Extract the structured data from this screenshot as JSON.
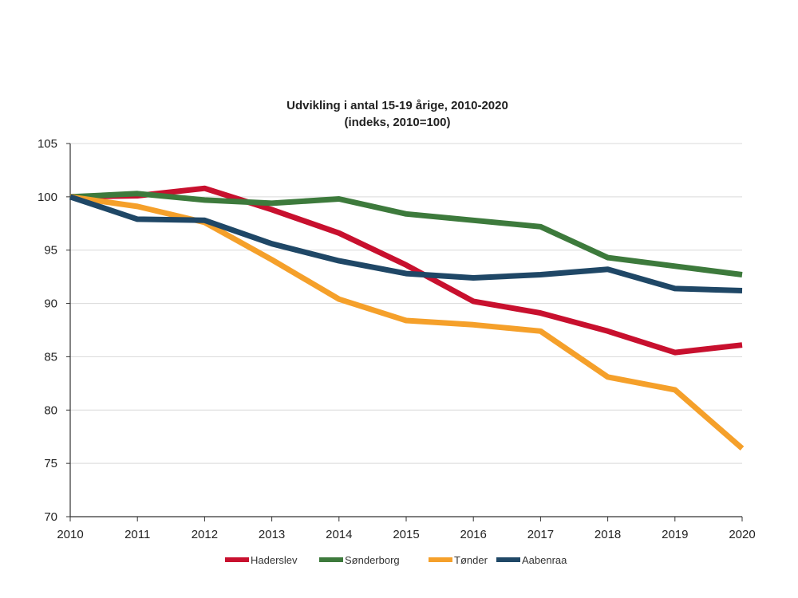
{
  "chart_data": {
    "type": "line",
    "title": "Udvikling i antal 15-19 årige, 2010-2020",
    "subtitle": "(indeks, 2010=100)",
    "xlabel": "",
    "ylabel": "",
    "x": [
      2010,
      2011,
      2012,
      2013,
      2014,
      2015,
      2016,
      2017,
      2018,
      2019,
      2020
    ],
    "ylim": [
      70,
      105
    ],
    "yticks": [
      70,
      75,
      80,
      85,
      90,
      95,
      100,
      105
    ],
    "grid": true,
    "legend_position": "bottom",
    "series": [
      {
        "name": "Haderslev",
        "color": "#c8102e",
        "values": [
          100,
          100.1,
          100.8,
          98.8,
          96.6,
          93.6,
          90.2,
          89.1,
          87.4,
          85.4,
          86.1
        ]
      },
      {
        "name": "Sønderborg",
        "color": "#3d7a3c",
        "values": [
          100,
          100.3,
          99.7,
          99.4,
          99.8,
          98.4,
          97.8,
          97.2,
          94.3,
          93.5,
          92.7
        ]
      },
      {
        "name": "Tønder",
        "color": "#f5a02a",
        "values": [
          100,
          99.1,
          97.6,
          94.1,
          90.4,
          88.4,
          88.0,
          87.4,
          83.1,
          81.9,
          76.4
        ]
      },
      {
        "name": "Aabenraa",
        "color": "#1f4766",
        "values": [
          100,
          97.9,
          97.8,
          95.6,
          94.0,
          92.8,
          92.4,
          92.7,
          93.2,
          91.4,
          91.2
        ]
      }
    ]
  }
}
